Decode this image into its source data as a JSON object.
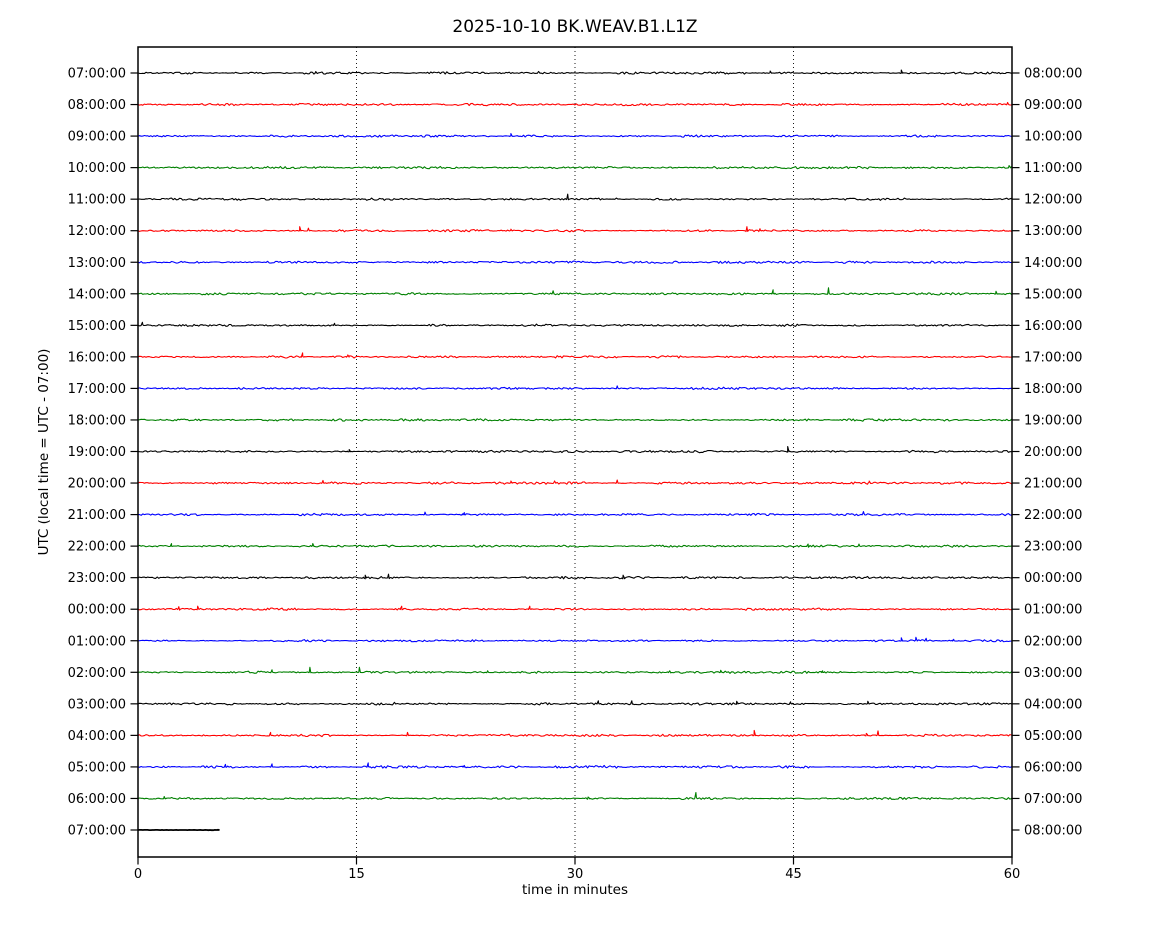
{
  "title": "2025-10-10 BK.WEAV.B1.L1Z",
  "chart_data": {
    "type": "line",
    "subtype": "helicorder-dayplot",
    "title": "2025-10-10 BK.WEAV.B1.L1Z",
    "xlabel": "time in minutes",
    "ylabel": "UTC (local time = UTC - 07:00)",
    "x_ticks": [
      0,
      15,
      30,
      45,
      60
    ],
    "xlim": [
      0,
      60
    ],
    "grid": {
      "vertical_dotted_at": [
        15,
        30,
        45
      ]
    },
    "color_cycle": [
      "#000000",
      "#ff0000",
      "#0000ff",
      "#008000"
    ],
    "minutes_per_row": 60,
    "rows": [
      {
        "utc": "07:00:00",
        "right_label": "08:00:00",
        "color": "#000000",
        "duration_min": 60,
        "spikes": [
          {
            "t": 12.2,
            "h": 1.5
          },
          {
            "t": 27.5,
            "h": 1.5
          },
          {
            "t": 43.4,
            "h": 2
          },
          {
            "t": 52.4,
            "h": 3
          }
        ]
      },
      {
        "utc": "08:00:00",
        "right_label": "09:00:00",
        "color": "#ff0000",
        "duration_min": 60,
        "spikes": [
          {
            "t": 59.7,
            "h": 2
          }
        ]
      },
      {
        "utc": "09:00:00",
        "right_label": "10:00:00",
        "color": "#0000ff",
        "duration_min": 60,
        "spikes": [
          {
            "t": 25.6,
            "h": 2.5
          }
        ]
      },
      {
        "utc": "10:00:00",
        "right_label": "11:00:00",
        "color": "#008000",
        "duration_min": 60,
        "spikes": [
          {
            "t": 59.8,
            "h": 2
          }
        ]
      },
      {
        "utc": "11:00:00",
        "right_label": "12:00:00",
        "color": "#000000",
        "duration_min": 60,
        "spikes": [
          {
            "t": 29.5,
            "h": 5
          }
        ]
      },
      {
        "utc": "12:00:00",
        "right_label": "13:00:00",
        "color": "#ff0000",
        "duration_min": 60,
        "spikes": [
          {
            "t": 11.1,
            "h": 4
          },
          {
            "t": 11.7,
            "h": 2.5
          },
          {
            "t": 25.6,
            "h": 1.5
          },
          {
            "t": 41.8,
            "h": 4
          },
          {
            "t": 42.7,
            "h": 2
          }
        ]
      },
      {
        "utc": "13:00:00",
        "right_label": "14:00:00",
        "color": "#0000ff",
        "duration_min": 60,
        "spikes": []
      },
      {
        "utc": "14:00:00",
        "right_label": "15:00:00",
        "color": "#008000",
        "duration_min": 60,
        "spikes": [
          {
            "t": 28.5,
            "h": 3
          },
          {
            "t": 43.6,
            "h": 4
          },
          {
            "t": 47.4,
            "h": 6
          },
          {
            "t": 58.9,
            "h": 2.5
          }
        ]
      },
      {
        "utc": "15:00:00",
        "right_label": "16:00:00",
        "color": "#000000",
        "duration_min": 60,
        "spikes": [
          {
            "t": 0.3,
            "h": 3
          },
          {
            "t": 13.5,
            "h": 2
          }
        ]
      },
      {
        "utc": "16:00:00",
        "right_label": "17:00:00",
        "color": "#ff0000",
        "duration_min": 60,
        "spikes": [
          {
            "t": 11.3,
            "h": 4
          },
          {
            "t": 14.4,
            "h": 2
          }
        ]
      },
      {
        "utc": "17:00:00",
        "right_label": "18:00:00",
        "color": "#0000ff",
        "duration_min": 60,
        "spikes": [
          {
            "t": 32.9,
            "h": 2.5
          }
        ]
      },
      {
        "utc": "18:00:00",
        "right_label": "19:00:00",
        "color": "#008000",
        "duration_min": 60,
        "spikes": []
      },
      {
        "utc": "19:00:00",
        "right_label": "20:00:00",
        "color": "#000000",
        "duration_min": 60,
        "spikes": [
          {
            "t": 14.5,
            "h": 2
          },
          {
            "t": 44.6,
            "h": 5
          }
        ]
      },
      {
        "utc": "20:00:00",
        "right_label": "21:00:00",
        "color": "#ff0000",
        "duration_min": 60,
        "spikes": [
          {
            "t": 12.7,
            "h": 2.5
          },
          {
            "t": 25.6,
            "h": 2
          },
          {
            "t": 28.6,
            "h": 2
          },
          {
            "t": 32.9,
            "h": 3
          },
          {
            "t": 50.2,
            "h": 2
          }
        ]
      },
      {
        "utc": "21:00:00",
        "right_label": "22:00:00",
        "color": "#0000ff",
        "duration_min": 60,
        "spikes": [
          {
            "t": 19.7,
            "h": 2.5
          },
          {
            "t": 22.4,
            "h": 2
          },
          {
            "t": 49.8,
            "h": 3
          }
        ]
      },
      {
        "utc": "22:00:00",
        "right_label": "23:00:00",
        "color": "#008000",
        "duration_min": 60,
        "spikes": [
          {
            "t": 2.3,
            "h": 2.5
          },
          {
            "t": 12.0,
            "h": 2.5
          },
          {
            "t": 46.0,
            "h": 2
          },
          {
            "t": 49.5,
            "h": 2
          }
        ]
      },
      {
        "utc": "23:00:00",
        "right_label": "00:00:00",
        "color": "#000000",
        "duration_min": 60,
        "spikes": [
          {
            "t": 15.6,
            "h": 2.5
          },
          {
            "t": 17.2,
            "h": 3.5
          },
          {
            "t": 33.3,
            "h": 2.5
          }
        ]
      },
      {
        "utc": "00:00:00",
        "right_label": "01:00:00",
        "color": "#ff0000",
        "duration_min": 60,
        "spikes": [
          {
            "t": 2.8,
            "h": 2.5
          },
          {
            "t": 4.1,
            "h": 3
          },
          {
            "t": 18.1,
            "h": 3
          },
          {
            "t": 26.9,
            "h": 3
          }
        ]
      },
      {
        "utc": "01:00:00",
        "right_label": "02:00:00",
        "color": "#0000ff",
        "duration_min": 60,
        "spikes": [
          {
            "t": 52.4,
            "h": 3
          },
          {
            "t": 53.4,
            "h": 3.5
          },
          {
            "t": 54.1,
            "h": 2.5
          },
          {
            "t": 56.0,
            "h": 1.5
          }
        ]
      },
      {
        "utc": "02:00:00",
        "right_label": "03:00:00",
        "color": "#008000",
        "duration_min": 60,
        "spikes": [
          {
            "t": 9.2,
            "h": 2.5
          },
          {
            "t": 11.8,
            "h": 5
          },
          {
            "t": 15.2,
            "h": 5
          },
          {
            "t": 24.0,
            "h": 1.5
          },
          {
            "t": 36.5,
            "h": 1.5
          },
          {
            "t": 40.0,
            "h": 2
          },
          {
            "t": 47.0,
            "h": 1.5
          }
        ]
      },
      {
        "utc": "03:00:00",
        "right_label": "04:00:00",
        "color": "#000000",
        "duration_min": 60,
        "spikes": [
          {
            "t": 17.6,
            "h": 1.5
          },
          {
            "t": 31.6,
            "h": 3
          },
          {
            "t": 33.9,
            "h": 3
          },
          {
            "t": 41.1,
            "h": 2.5
          },
          {
            "t": 44.8,
            "h": 2
          },
          {
            "t": 50.1,
            "h": 2.5
          }
        ]
      },
      {
        "utc": "04:00:00",
        "right_label": "05:00:00",
        "color": "#ff0000",
        "duration_min": 60,
        "spikes": [
          {
            "t": 9.1,
            "h": 3
          },
          {
            "t": 18.5,
            "h": 3
          },
          {
            "t": 42.3,
            "h": 5
          },
          {
            "t": 50.0,
            "h": 2
          },
          {
            "t": 50.8,
            "h": 4.5
          }
        ]
      },
      {
        "utc": "05:00:00",
        "right_label": "06:00:00",
        "color": "#0000ff",
        "duration_min": 60,
        "spikes": [
          {
            "t": 6.0,
            "h": 2.5
          },
          {
            "t": 9.2,
            "h": 3
          },
          {
            "t": 15.8,
            "h": 4
          },
          {
            "t": 22.4,
            "h": 1.5
          },
          {
            "t": 32.0,
            "h": 1.5
          }
        ]
      },
      {
        "utc": "06:00:00",
        "right_label": "07:00:00",
        "color": "#008000",
        "duration_min": 60,
        "spikes": [
          {
            "t": 1.8,
            "h": 2
          },
          {
            "t": 30.9,
            "h": 1.5
          },
          {
            "t": 38.3,
            "h": 6
          }
        ]
      },
      {
        "utc": "07:00:00",
        "right_label": "08:00:00",
        "color": "#000000",
        "duration_min": 5.6,
        "spikes": []
      }
    ]
  }
}
